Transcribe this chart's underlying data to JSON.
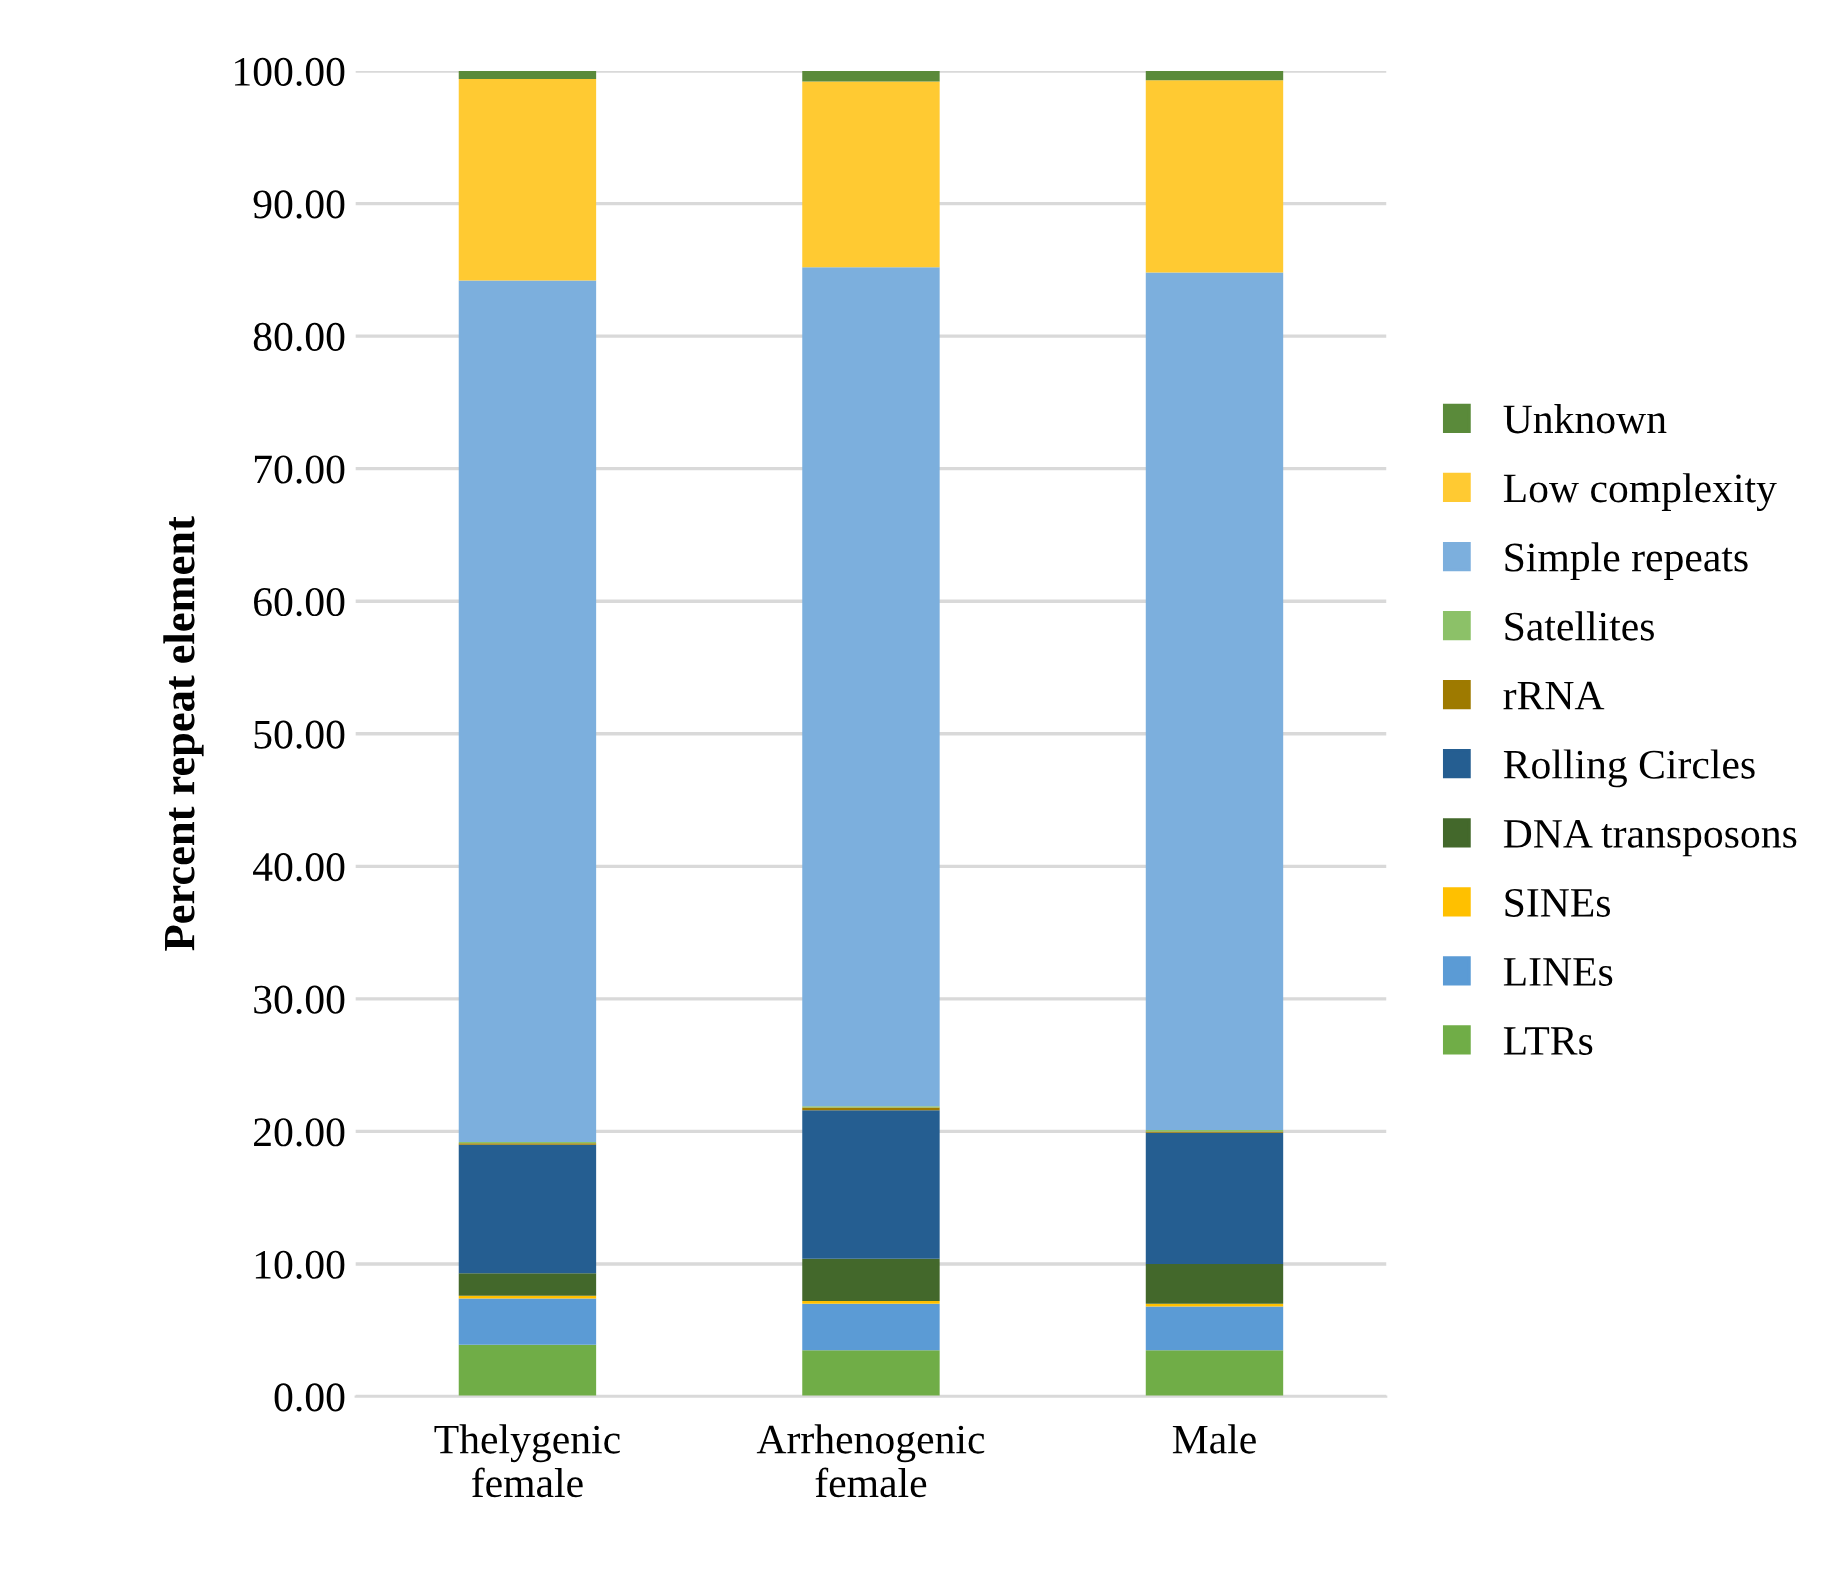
{
  "chart_data": {
    "type": "bar",
    "stacked": true,
    "ylabel": "Percent repeat element",
    "categories": [
      "Thelygenic\nfemale",
      "Arrhenogenic\nfemale",
      "Male"
    ],
    "ylim": [
      0,
      100
    ],
    "yticks": [
      {
        "value": 0,
        "label": "0.00"
      },
      {
        "value": 10,
        "label": "10.00"
      },
      {
        "value": 20,
        "label": "20.00"
      },
      {
        "value": 30,
        "label": "30.00"
      },
      {
        "value": 40,
        "label": "40.00"
      },
      {
        "value": 50,
        "label": "50.00"
      },
      {
        "value": 60,
        "label": "60.00"
      },
      {
        "value": 70,
        "label": "70.00"
      },
      {
        "value": 80,
        "label": "80.00"
      },
      {
        "value": 90,
        "label": "90.00"
      },
      {
        "value": 100,
        "label": "100.00"
      }
    ],
    "grid": "y",
    "legend": "right",
    "series": [
      {
        "name": "LTRs",
        "color": "#70ad47",
        "values": [
          3.9,
          3.5,
          3.5
        ]
      },
      {
        "name": "LINEs",
        "color": "#5b9bd5",
        "values": [
          3.5,
          3.5,
          3.3
        ]
      },
      {
        "name": "SINEs",
        "color": "#ffc000",
        "values": [
          0.2,
          0.2,
          0.2
        ]
      },
      {
        "name": "DNA transposons",
        "color": "#43682b",
        "values": [
          1.7,
          3.2,
          3.0
        ]
      },
      {
        "name": "Rolling Circles",
        "color": "#255e91",
        "values": [
          9.7,
          11.2,
          9.9
        ]
      },
      {
        "name": "rRNA",
        "color": "#9e7a00",
        "values": [
          0.1,
          0.2,
          0.1
        ]
      },
      {
        "name": "Satellites",
        "color": "#8cc168",
        "values": [
          0.1,
          0.1,
          0.1
        ]
      },
      {
        "name": "Simple repeats",
        "color": "#7cafdd",
        "values": [
          65.0,
          63.3,
          64.7
        ]
      },
      {
        "name": "Low complexity",
        "color": "#ffca32",
        "values": [
          15.2,
          14.0,
          14.5
        ]
      },
      {
        "name": "Unknown",
        "color": "#5a8a3a",
        "values": [
          0.8,
          0.9,
          0.8
        ]
      }
    ]
  }
}
